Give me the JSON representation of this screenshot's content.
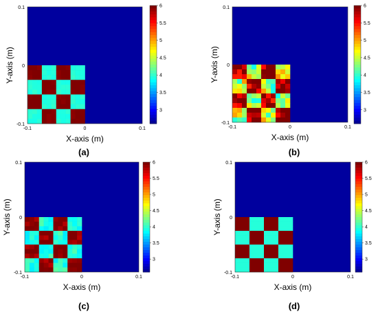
{
  "chart_data": [
    {
      "type": "heatmap",
      "panel_label": "(a)",
      "xlabel": "X-axis (m)",
      "ylabel": "Y-axis (m)",
      "xlim": [
        -0.1,
        0.1
      ],
      "ylim": [
        -0.1,
        0.1
      ],
      "x_ticks": [
        "-0.1",
        "0",
        "0.1"
      ],
      "y_ticks": [
        "0.1",
        "0",
        "-0.1"
      ],
      "colorbar_ticks": [
        "6",
        "5.5",
        "5",
        "4.5",
        "4",
        "3.5",
        "3"
      ],
      "clim": [
        2.6,
        6
      ],
      "background_value": 2.7,
      "noise": 0.05,
      "checkerboard": {
        "x_range": [
          -0.1,
          0
        ],
        "y_range": [
          -0.1,
          0
        ],
        "rows": 4,
        "cols": 4,
        "high": 6,
        "low": 4,
        "top_left": "high"
      }
    },
    {
      "type": "heatmap",
      "panel_label": "(b)",
      "xlabel": "X-axis (m)",
      "ylabel": "Y-axis (m)",
      "xlim": [
        -0.1,
        0.1
      ],
      "ylim": [
        -0.1,
        0.1
      ],
      "x_ticks": [
        "-0.1",
        "0",
        "0.1"
      ],
      "y_ticks": [
        "0.1",
        "0",
        "-0.1"
      ],
      "colorbar_ticks": [
        "6",
        "5.5",
        "5",
        "4.5",
        "4",
        "3.5",
        "3"
      ],
      "clim": [
        2.6,
        6
      ],
      "background_value": 2.7,
      "noise": 0.6,
      "checkerboard": {
        "x_range": [
          -0.1,
          0
        ],
        "y_range": [
          -0.1,
          0
        ],
        "rows": 4,
        "cols": 4,
        "high": 6,
        "low": 4.5,
        "top_left": "high"
      }
    },
    {
      "type": "heatmap",
      "panel_label": "(c)",
      "xlabel": "X-axis (m)",
      "ylabel": "Y-axis (m)",
      "xlim": [
        -0.1,
        0.1
      ],
      "ylim": [
        -0.1,
        0.1
      ],
      "x_ticks": [
        "-0.1",
        "0",
        "0.1"
      ],
      "y_ticks": [
        "0.1",
        "0",
        "-0.1"
      ],
      "colorbar_ticks": [
        "6",
        "5.5",
        "5",
        "4.5",
        "4",
        "3.5",
        "3"
      ],
      "clim": [
        2.6,
        6
      ],
      "background_value": 2.7,
      "noise": 0.2,
      "checkerboard": {
        "x_range": [
          -0.1,
          0
        ],
        "y_range": [
          -0.1,
          0
        ],
        "rows": 4,
        "cols": 4,
        "high": 6,
        "low": 4,
        "top_left": "high"
      }
    },
    {
      "type": "heatmap",
      "panel_label": "(d)",
      "xlabel": "X-axis (m)",
      "ylabel": "Y-axis (m)",
      "xlim": [
        -0.1,
        0.1
      ],
      "ylim": [
        -0.1,
        0.1
      ],
      "x_ticks": [
        "-0.1",
        "0",
        "0.1"
      ],
      "y_ticks": [
        "0.1",
        "0",
        "-0.1"
      ],
      "colorbar_ticks": [
        "6",
        "5.5",
        "5",
        "4.5",
        "4",
        "3.5",
        "3"
      ],
      "clim": [
        2.6,
        6
      ],
      "background_value": 2.7,
      "noise": 0.0,
      "checkerboard": {
        "x_range": [
          -0.1,
          0
        ],
        "y_range": [
          -0.1,
          0
        ],
        "rows": 4,
        "cols": 4,
        "high": 6,
        "low": 4,
        "top_left": "high"
      }
    }
  ]
}
